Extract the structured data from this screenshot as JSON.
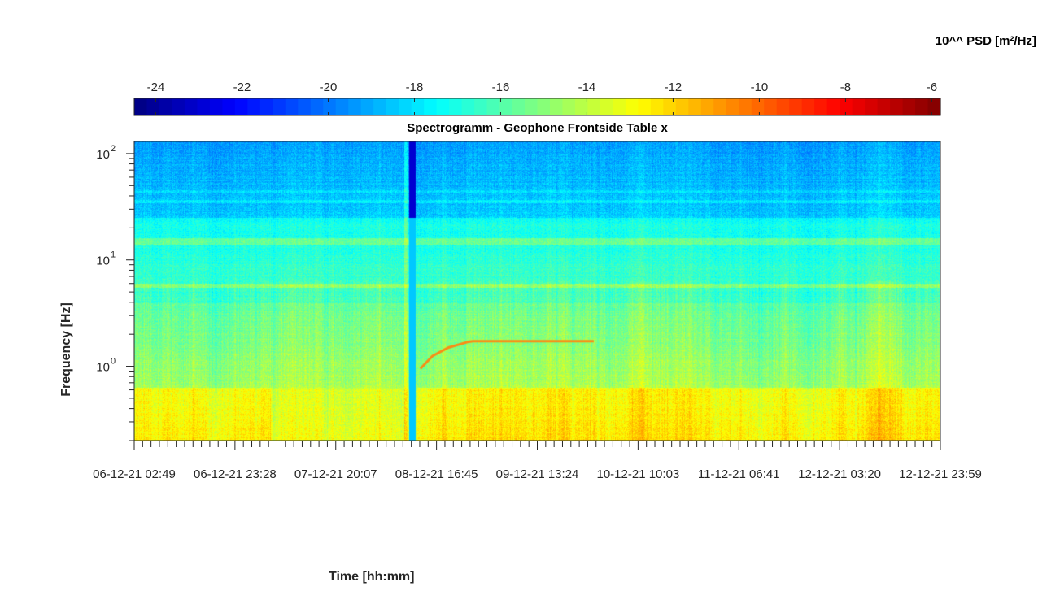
{
  "chart_data": {
    "type": "heatmap",
    "title": "Spectrogramm - Geophone Frontside Table x",
    "xlabel": "Time [hh:mm]",
    "ylabel": "Frequency [Hz]",
    "colorbar_label": "10^^ PSD [m²/Hz]",
    "colormap": "jet",
    "clim": [
      -24.5,
      -5.8
    ],
    "colorbar_ticks": [
      "-24",
      "-22",
      "-20",
      "-18",
      "-16",
      "-14",
      "-12",
      "-10",
      "-8",
      "-6"
    ],
    "colorbar_tick_values": [
      -24,
      -22,
      -20,
      -18,
      -16,
      -14,
      -12,
      -10,
      -8,
      -6
    ],
    "y_scale": "log",
    "ylim": [
      0.2,
      130
    ],
    "y_major_ticks": [
      {
        "value": 1,
        "base": "10",
        "exp": "0"
      },
      {
        "value": 10,
        "base": "10",
        "exp": "1"
      },
      {
        "value": 100,
        "base": "10",
        "exp": "2"
      }
    ],
    "x_tick_labels": [
      "06-12-21 02:49",
      "06-12-21 23:28",
      "07-12-21 20:07",
      "08-12-21 16:45",
      "09-12-21 13:24",
      "10-12-21 10:03",
      "11-12-21 06:41",
      "12-12-21 03:20",
      "12-12-21 23:59"
    ],
    "grid": false
  }
}
